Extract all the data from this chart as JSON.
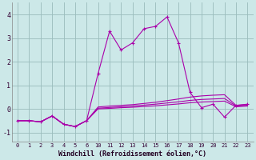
{
  "x_labels": [
    "0",
    "1",
    "2",
    "3",
    "4",
    "5",
    "6",
    "10",
    "11",
    "12",
    "13",
    "14",
    "15",
    "16",
    "17",
    "18",
    "19",
    "20",
    "21",
    "22",
    "23"
  ],
  "line1_y": [
    -0.5,
    -0.5,
    -0.55,
    -0.3,
    -0.65,
    -0.75,
    -0.5,
    1.5,
    3.3,
    2.5,
    2.8,
    3.4,
    3.5,
    3.9,
    2.8,
    0.7,
    0.05,
    0.2,
    -0.35,
    0.15,
    0.2
  ],
  "line2_y": [
    -0.5,
    -0.5,
    -0.55,
    -0.3,
    -0.65,
    -0.75,
    -0.5,
    0.08,
    0.12,
    0.15,
    0.18,
    0.23,
    0.28,
    0.35,
    0.42,
    0.5,
    0.55,
    0.58,
    0.6,
    0.15,
    0.18
  ],
  "line3_y": [
    -0.5,
    -0.5,
    -0.55,
    -0.3,
    -0.65,
    -0.75,
    -0.5,
    0.03,
    0.06,
    0.09,
    0.12,
    0.16,
    0.2,
    0.25,
    0.3,
    0.36,
    0.4,
    0.42,
    0.44,
    0.12,
    0.15
  ],
  "line4_y": [
    -0.5,
    -0.5,
    -0.55,
    -0.3,
    -0.65,
    -0.75,
    -0.5,
    0.0,
    0.02,
    0.05,
    0.07,
    0.1,
    0.13,
    0.17,
    0.21,
    0.26,
    0.29,
    0.31,
    0.33,
    0.09,
    0.12
  ],
  "line_color": "#aa00aa",
  "bg_color": "#cce8e8",
  "grid_color": "#99bbbb",
  "xlabel": "Windchill (Refroidissement éolien,°C)",
  "ylim": [
    -1.4,
    4.5
  ],
  "yticks": [
    -1,
    0,
    1,
    2,
    3,
    4
  ],
  "marker": "+",
  "marker_size": 3,
  "linewidth": 0.8
}
